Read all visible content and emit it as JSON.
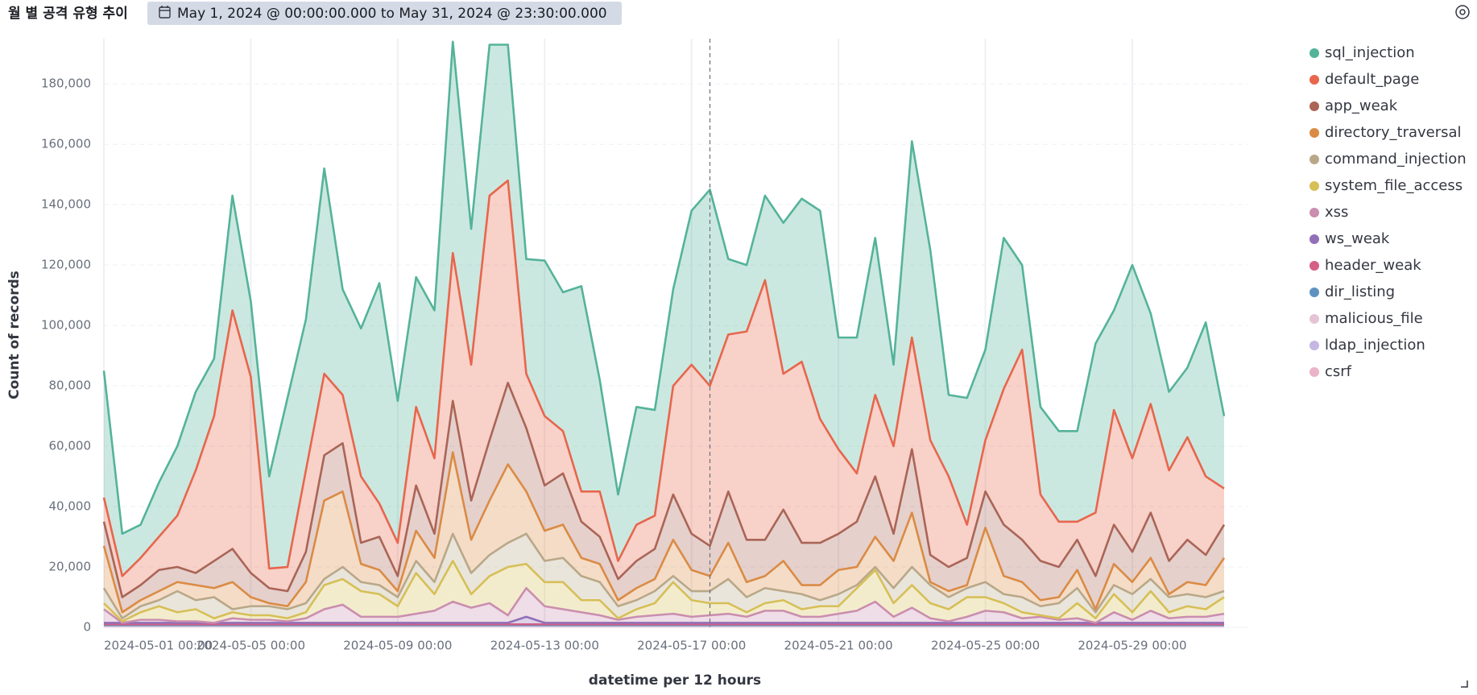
{
  "header": {
    "title": "월 별 공격 유형 추이",
    "date_range": "May 1, 2024 @ 00:00:00.000 to May 31, 2024 @ 23:30:00.000"
  },
  "chart_data": {
    "type": "stacked_area",
    "x_label": "datetime per 12 hours",
    "y_label": "Count of records",
    "categories": [
      "2024-05-01 00:00",
      null,
      null,
      null,
      null,
      null,
      null,
      null,
      "2024-05-05 00:00",
      null,
      null,
      null,
      null,
      null,
      null,
      null,
      "2024-05-09 00:00",
      null,
      null,
      null,
      null,
      null,
      null,
      null,
      "2024-05-13 00:00",
      null,
      null,
      null,
      null,
      null,
      null,
      null,
      "2024-05-17 00:00",
      null,
      null,
      null,
      null,
      null,
      null,
      null,
      "2024-05-21 00:00",
      null,
      null,
      null,
      null,
      null,
      null,
      null,
      "2024-05-25 00:00",
      null,
      null,
      null,
      null,
      null,
      null,
      null,
      "2024-05-29 00:00",
      null,
      null,
      null,
      null,
      null
    ],
    "ylim": [
      0,
      195000
    ],
    "yticks": [
      0,
      {
        "value": 20000,
        "label": "20,000"
      },
      {
        "value": 40000,
        "label": "40,000"
      },
      {
        "value": 60000,
        "label": "60,000"
      },
      {
        "value": 80000,
        "label": "80,000"
      },
      {
        "value": 100000,
        "label": "100,000"
      },
      {
        "value": 120000,
        "label": "120,000"
      },
      {
        "value": 140000,
        "label": "140,000"
      },
      {
        "value": 160000,
        "label": "160,000"
      },
      {
        "value": 180000,
        "label": "180,000"
      }
    ],
    "grid": true,
    "legend": "right",
    "series": [
      {
        "name": "sql_injection",
        "color": "#54b399",
        "values": [
          42000,
          14000,
          11000,
          18000,
          23000,
          26000,
          19000,
          38000,
          25000,
          30500,
          56000,
          50000,
          68000,
          35000,
          49000,
          73000,
          47000,
          43000,
          49000,
          70000,
          45000,
          50000,
          45000,
          38000,
          51500,
          46000,
          68000,
          37000,
          22000,
          39000,
          35000,
          32000,
          51000,
          65000,
          25000,
          22000,
          28000,
          50000,
          54000,
          69000,
          37000,
          45000,
          52000,
          27000,
          65000,
          63000,
          27000,
          42000,
          30000,
          50000,
          28000,
          29000,
          30000,
          30000,
          56000,
          33000,
          64000,
          30000,
          26000,
          23000,
          51000,
          24000
        ]
      },
      {
        "name": "default_page",
        "color": "#e7664c",
        "values": [
          8000,
          7000,
          9000,
          11000,
          17000,
          34000,
          48000,
          79000,
          65000,
          6500,
          8000,
          27000,
          27000,
          16000,
          22000,
          11000,
          11000,
          26000,
          25000,
          49000,
          45000,
          81000,
          67000,
          18000,
          23000,
          14000,
          10000,
          15000,
          6000,
          12000,
          11000,
          36000,
          56000,
          53000,
          52000,
          69000,
          86000,
          45000,
          60000,
          41000,
          28000,
          16000,
          27000,
          29000,
          37000,
          38000,
          30000,
          11000,
          17000,
          45000,
          63000,
          22000,
          15000,
          6000,
          21000,
          38000,
          31000,
          36000,
          30000,
          34000,
          26000,
          12000
        ]
      },
      {
        "name": "app_weak",
        "color": "#aa6556",
        "values": [
          8000,
          5000,
          5000,
          7000,
          5000,
          4000,
          9000,
          11000,
          8000,
          5000,
          5000,
          10000,
          15000,
          16000,
          7000,
          11000,
          5000,
          15000,
          8000,
          17000,
          13000,
          20000,
          27000,
          21000,
          15000,
          17000,
          12000,
          9000,
          7000,
          9000,
          10000,
          15000,
          12000,
          10000,
          17000,
          14000,
          12000,
          17000,
          14000,
          14000,
          12000,
          15000,
          20000,
          9000,
          21000,
          9000,
          8000,
          9000,
          12000,
          17000,
          14000,
          13000,
          10000,
          10000,
          11000,
          13000,
          10000,
          15000,
          11000,
          14000,
          10000,
          11000
        ]
      },
      {
        "name": "directory_traversal",
        "color": "#da8b45",
        "values": [
          14000,
          2000,
          2000,
          3000,
          3000,
          5000,
          3000,
          9000,
          3000,
          1000,
          1000,
          7000,
          26000,
          25000,
          6000,
          5000,
          2000,
          10000,
          8000,
          27000,
          11000,
          18000,
          26000,
          14000,
          10000,
          11000,
          6000,
          6000,
          2000,
          4000,
          4000,
          12000,
          7000,
          5000,
          12000,
          5000,
          4000,
          10000,
          3000,
          5000,
          8000,
          6000,
          10000,
          9000,
          18000,
          1000,
          2000,
          1000,
          18000,
          6000,
          5000,
          2000,
          2000,
          6000,
          1000,
          7000,
          4000,
          7000,
          1000,
          4000,
          4000,
          11000
        ]
      },
      {
        "name": "command_injection",
        "color": "#b9a888",
        "values": [
          5000,
          1000,
          2000,
          2000,
          7000,
          3000,
          7000,
          1000,
          3000,
          3000,
          3000,
          3000,
          2000,
          4000,
          3000,
          3000,
          3000,
          4000,
          4000,
          9000,
          7000,
          7000,
          8000,
          10000,
          7000,
          8000,
          8000,
          6000,
          4000,
          3000,
          4000,
          2000,
          3000,
          4000,
          8000,
          5000,
          5000,
          3000,
          5000,
          2000,
          4000,
          1000,
          1000,
          5000,
          6000,
          6000,
          4000,
          3000,
          5000,
          3000,
          5000,
          3000,
          5000,
          5000,
          2000,
          3000,
          6000,
          4000,
          5000,
          4000,
          4000,
          2000
        ]
      },
      {
        "name": "system_file_access",
        "color": "#d6bf57",
        "values": [
          2000,
          500,
          2500,
          4500,
          3000,
          4000,
          1500,
          2000,
          1500,
          1500,
          1000,
          2000,
          8000,
          8500,
          8500,
          7500,
          3500,
          13500,
          5500,
          13500,
          4500,
          9000,
          16000,
          8000,
          8000,
          9000,
          4000,
          5000,
          500,
          2500,
          4000,
          10500,
          5500,
          4000,
          3500,
          1500,
          2500,
          3500,
          2500,
          3500,
          2500,
          7500,
          10500,
          4500,
          7500,
          5000,
          4000,
          6500,
          4500,
          3000,
          2000,
          500,
          500,
          5000,
          1500,
          6000,
          2500,
          6500,
          2000,
          3500,
          2500,
          5500
        ]
      },
      {
        "name": "xss",
        "color": "#ca8eae",
        "values": [
          4500,
          0,
          1000,
          1000,
          500,
          500,
          0,
          1500,
          1000,
          1000,
          500,
          1500,
          4500,
          6000,
          2000,
          2000,
          2000,
          3000,
          4000,
          7000,
          5000,
          6500,
          2500,
          9500,
          5500,
          4500,
          3500,
          2500,
          1000,
          2000,
          2500,
          3000,
          2000,
          2500,
          3000,
          2000,
          4000,
          4000,
          2000,
          2000,
          3000,
          4000,
          7000,
          2000,
          5000,
          1500,
          500,
          2000,
          4000,
          3500,
          1500,
          2000,
          1000,
          1500,
          0,
          3500,
          1000,
          4000,
          1500,
          2000,
          2000,
          3000
        ]
      },
      {
        "name": "ws_weak",
        "color": "#9170b8",
        "values": [
          500,
          500,
          500,
          500,
          500,
          500,
          500,
          500,
          500,
          500,
          500,
          500,
          500,
          500,
          500,
          500,
          500,
          500,
          500,
          500,
          500,
          500,
          500,
          2500,
          500,
          500,
          500,
          500,
          500,
          500,
          500,
          500,
          500,
          500,
          500,
          500,
          500,
          500,
          500,
          500,
          500,
          500,
          500,
          500,
          500,
          500,
          500,
          500,
          500,
          500,
          500,
          500,
          500,
          500,
          500,
          500,
          500,
          500,
          500,
          500,
          500,
          500
        ]
      },
      {
        "name": "header_weak",
        "color": "#d36086",
        "values": [
          300,
          300,
          300,
          300,
          300,
          300,
          300,
          300,
          300,
          300,
          300,
          300,
          300,
          300,
          300,
          300,
          300,
          300,
          300,
          300,
          300,
          300,
          300,
          300,
          300,
          300,
          300,
          300,
          300,
          300,
          300,
          300,
          300,
          300,
          300,
          300,
          300,
          300,
          300,
          300,
          300,
          300,
          300,
          300,
          300,
          300,
          300,
          300,
          300,
          300,
          300,
          300,
          300,
          300,
          300,
          300,
          300,
          300,
          300,
          300,
          300,
          300
        ]
      },
      {
        "name": "dir_listing",
        "color": "#6092c0",
        "values": [
          200,
          200,
          200,
          200,
          200,
          200,
          200,
          200,
          200,
          200,
          200,
          200,
          200,
          200,
          200,
          200,
          200,
          200,
          200,
          200,
          200,
          200,
          200,
          200,
          200,
          200,
          200,
          200,
          200,
          200,
          200,
          200,
          200,
          200,
          200,
          200,
          200,
          200,
          200,
          200,
          200,
          200,
          200,
          200,
          200,
          200,
          200,
          200,
          200,
          200,
          200,
          200,
          200,
          200,
          200,
          200,
          200,
          200,
          200,
          200,
          200,
          200
        ]
      },
      {
        "name": "malicious_file",
        "color": "#e4c4d4",
        "values": [
          200,
          200,
          200,
          200,
          200,
          200,
          200,
          200,
          200,
          200,
          200,
          200,
          200,
          200,
          200,
          200,
          200,
          200,
          200,
          200,
          200,
          200,
          200,
          200,
          200,
          200,
          200,
          200,
          200,
          200,
          200,
          200,
          200,
          200,
          200,
          200,
          200,
          200,
          200,
          200,
          200,
          200,
          200,
          200,
          200,
          200,
          200,
          200,
          200,
          200,
          200,
          200,
          200,
          200,
          200,
          200,
          200,
          200,
          200,
          200,
          200,
          200
        ]
      },
      {
        "name": "ldap_injection",
        "color": "#c5b7e3",
        "values": [
          150,
          150,
          150,
          150,
          150,
          150,
          150,
          150,
          150,
          150,
          150,
          150,
          150,
          150,
          150,
          150,
          150,
          150,
          150,
          150,
          150,
          150,
          150,
          150,
          150,
          150,
          150,
          150,
          150,
          150,
          150,
          150,
          150,
          150,
          150,
          150,
          150,
          150,
          150,
          150,
          150,
          150,
          150,
          150,
          150,
          150,
          150,
          150,
          150,
          150,
          150,
          150,
          150,
          150,
          150,
          150,
          150,
          150,
          150,
          150,
          150,
          150
        ]
      },
      {
        "name": "csrf",
        "color": "#ebb3c8",
        "values": [
          150,
          150,
          150,
          150,
          150,
          150,
          150,
          150,
          150,
          150,
          150,
          150,
          150,
          150,
          150,
          150,
          150,
          150,
          150,
          150,
          150,
          150,
          150,
          150,
          150,
          150,
          150,
          150,
          150,
          150,
          150,
          150,
          150,
          150,
          150,
          150,
          150,
          150,
          150,
          150,
          150,
          150,
          150,
          150,
          150,
          150,
          150,
          150,
          150,
          150,
          150,
          150,
          150,
          150,
          150,
          150,
          150,
          150,
          150,
          150,
          150,
          150
        ]
      }
    ]
  }
}
